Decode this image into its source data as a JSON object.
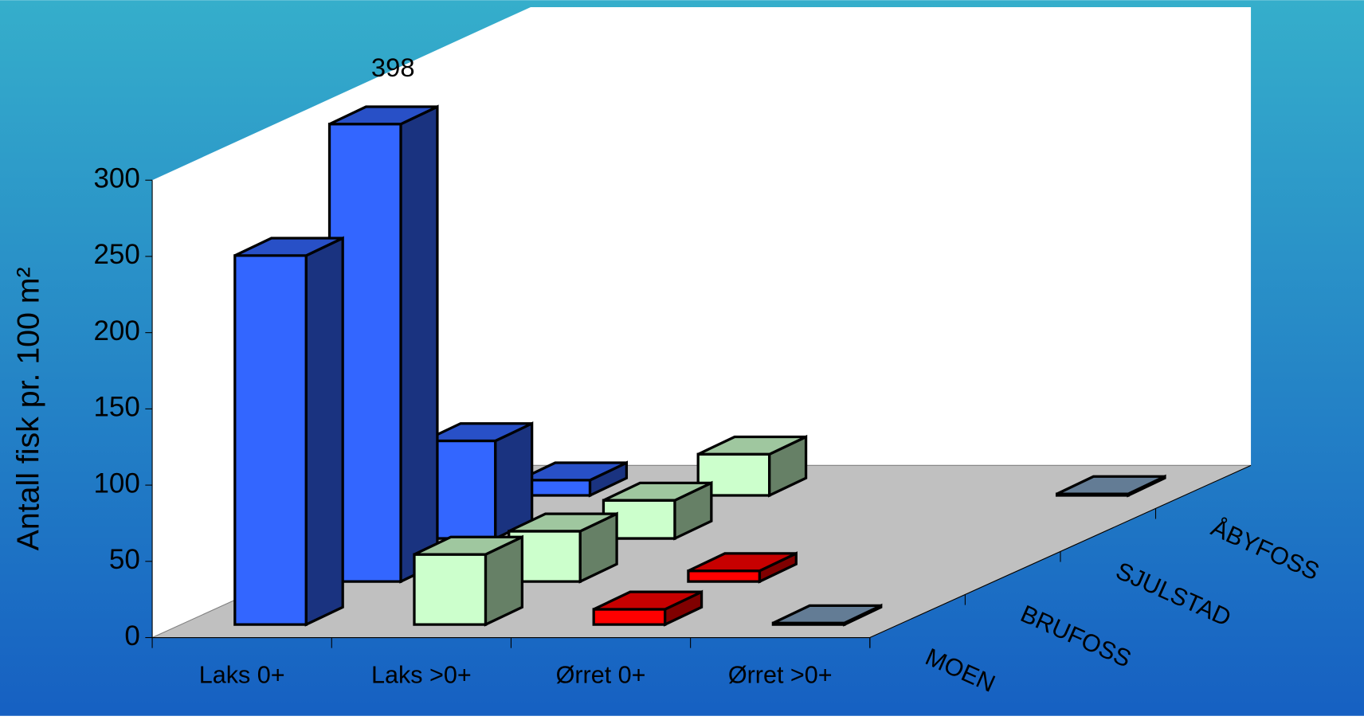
{
  "chart_data": {
    "type": "bar3d",
    "y_label": "Antall fisk pr. 100 m²",
    "categories": [
      "Laks 0+",
      "Laks >0+",
      "Ørret 0+",
      "Ørret >0+"
    ],
    "colors": [
      "#3366ff",
      "#ccffcc",
      "#ff0000",
      "#7f9fbf"
    ],
    "series": [
      {
        "name": "MOEN",
        "values": [
          242,
          46,
          10,
          1
        ]
      },
      {
        "name": "BRUFOSS",
        "values": [
          398,
          33,
          7,
          null
        ]
      },
      {
        "name": "SJULSTAD",
        "values": [
          64,
          25,
          null,
          null
        ]
      },
      {
        "name": "ÅBYFOSS",
        "values": [
          10,
          27,
          null,
          1
        ]
      }
    ],
    "ylim": [
      0,
      300
    ],
    "yticks": [
      0,
      50,
      100,
      150,
      200,
      250,
      300
    ]
  }
}
